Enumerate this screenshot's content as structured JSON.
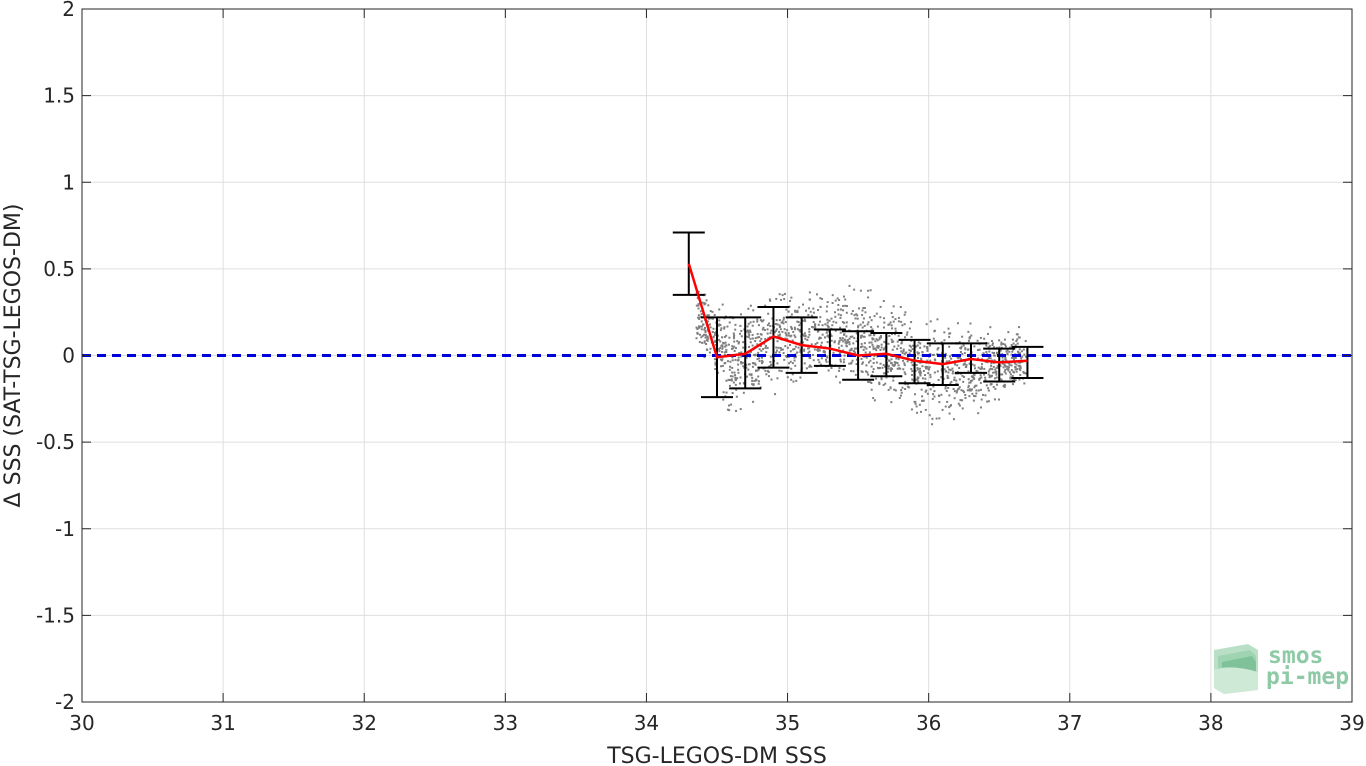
{
  "chart_data": {
    "type": "scatter",
    "title": "",
    "xlabel": "TSG-LEGOS-DM SSS",
    "ylabel": "Δ SSS (SAT-TSG-LEGOS-DM)",
    "xlim": [
      30,
      39
    ],
    "ylim": [
      -2,
      2
    ],
    "xticks": [
      30,
      31,
      32,
      33,
      34,
      35,
      36,
      37,
      38,
      39
    ],
    "yticks": [
      -2,
      -1.5,
      -1,
      -0.5,
      0,
      0.5,
      1,
      1.5,
      2
    ],
    "xtick_labels": [
      "30",
      "31",
      "32",
      "33",
      "34",
      "35",
      "36",
      "37",
      "38",
      "39"
    ],
    "ytick_labels": [
      "-2",
      "-1.5",
      "-1",
      "-0.5",
      "0",
      "0.5",
      "1",
      "1.5",
      "2"
    ],
    "grid": true,
    "reference_line": {
      "y": 0,
      "style": "dashed",
      "color": "#0000dd"
    },
    "scatter_cloud": {
      "color": "#7f7f7f",
      "x_range": [
        34.35,
        36.7
      ],
      "y_spread_by_x": [
        {
          "x": 34.35,
          "y_low": 0.0,
          "y_high": 0.5
        },
        {
          "x": 34.6,
          "y_low": -0.45,
          "y_high": 0.35
        },
        {
          "x": 35.0,
          "y_low": -0.25,
          "y_high": 0.45
        },
        {
          "x": 35.5,
          "y_low": -0.25,
          "y_high": 0.45
        },
        {
          "x": 36.0,
          "y_low": -0.5,
          "y_high": 0.3
        },
        {
          "x": 36.7,
          "y_low": -0.25,
          "y_high": 0.2
        }
      ]
    },
    "series": [
      {
        "color": "#ff0000",
        "x": [
          34.3,
          34.5,
          34.7,
          34.9,
          35.1,
          35.3,
          35.5,
          35.7,
          35.9,
          36.1,
          36.3,
          36.5,
          36.7
        ],
        "y": [
          0.53,
          -0.01,
          0.01,
          0.11,
          0.06,
          0.04,
          0.0,
          0.01,
          -0.03,
          -0.05,
          -0.02,
          -0.04,
          -0.03
        ],
        "err_low": [
          0.35,
          -0.24,
          -0.19,
          -0.07,
          -0.1,
          -0.06,
          -0.14,
          -0.12,
          -0.16,
          -0.17,
          -0.1,
          -0.15,
          -0.13
        ],
        "err_high": [
          0.71,
          0.22,
          0.22,
          0.28,
          0.22,
          0.15,
          0.14,
          0.13,
          0.09,
          0.07,
          0.07,
          0.04,
          0.05
        ]
      }
    ]
  },
  "logo": {
    "line1": "smos",
    "line2": "pi-mep"
  }
}
